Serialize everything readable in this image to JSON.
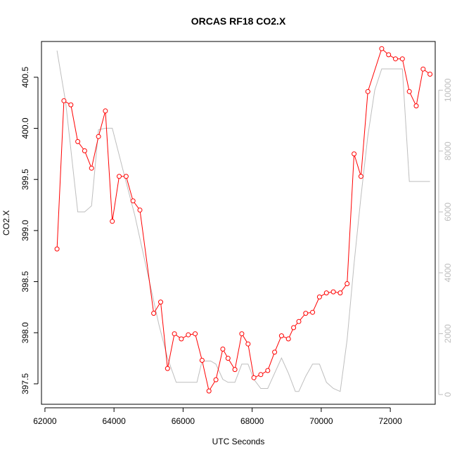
{
  "chart_data": {
    "type": "line",
    "title": "ORCAS RF18 CO2.X",
    "xlabel": "UTC Seconds",
    "ylabel": "CO2.X",
    "xlim": [
      61900,
      73300
    ],
    "ylim": [
      397.3,
      400.85
    ],
    "y2lim": [
      -320,
      11600
    ],
    "x_ticks": [
      62000,
      64000,
      66000,
      68000,
      70000,
      72000
    ],
    "y_ticks": [
      397.5,
      398.0,
      398.5,
      399.0,
      399.5,
      400.0,
      400.5
    ],
    "y2_ticks": [
      0,
      2000,
      4000,
      6000,
      8000,
      10000
    ],
    "grid": false,
    "legend": "none",
    "series": [
      {
        "role": "primary",
        "color": "#ff0000",
        "marker": "open-circle",
        "x": [
          62350,
          62550,
          62750,
          62950,
          63150,
          63350,
          63550,
          63750,
          63950,
          64150,
          64350,
          64550,
          64750,
          65150,
          65350,
          65550,
          65750,
          65950,
          66150,
          66350,
          66550,
          66750,
          66950,
          67150,
          67300,
          67500,
          67700,
          67880,
          68050,
          68250,
          68450,
          68650,
          68850,
          69050,
          69200,
          69350,
          69550,
          69750,
          69950,
          70150,
          70350,
          70550,
          70750,
          70950,
          71150,
          71350,
          71750,
          71950,
          72150,
          72350,
          72550,
          72750,
          72950,
          73150
        ],
        "y": [
          398.82,
          400.27,
          400.23,
          399.87,
          399.78,
          399.61,
          399.92,
          400.17,
          399.09,
          399.53,
          399.53,
          399.29,
          399.2,
          398.19,
          398.3,
          397.65,
          397.99,
          397.94,
          397.98,
          397.99,
          397.73,
          397.43,
          397.54,
          397.84,
          397.75,
          397.64,
          397.99,
          397.89,
          397.56,
          397.59,
          397.63,
          397.81,
          397.97,
          397.94,
          398.05,
          398.11,
          398.19,
          398.2,
          398.35,
          398.39,
          398.4,
          398.39,
          398.48,
          399.75,
          399.53,
          400.36,
          400.78,
          400.72,
          400.68,
          400.68,
          400.36,
          400.22,
          400.58,
          400.53
        ]
      },
      {
        "role": "secondary",
        "color": "#bebebe",
        "x": [
          62350,
          62600,
          62950,
          63150,
          63350,
          63550,
          63750,
          63950,
          64300,
          64600,
          64950,
          65300,
          65550,
          65800,
          66100,
          66400,
          66550,
          66800,
          66950,
          67150,
          67300,
          67500,
          67700,
          67880,
          68050,
          68250,
          68450,
          68650,
          68850,
          69050,
          69250,
          69350,
          69550,
          69750,
          69950,
          70150,
          70350,
          70550,
          70750,
          70950,
          71150,
          71350,
          71550,
          71750,
          71950,
          72150,
          72350,
          72550,
          72750,
          72950,
          73150
        ],
        "y": [
          11300,
          9600,
          6000,
          6000,
          6200,
          8700,
          8750,
          8750,
          7200,
          5900,
          4100,
          2300,
          1200,
          400,
          400,
          400,
          1100,
          1100,
          1000,
          500,
          400,
          400,
          1000,
          1000,
          500,
          200,
          200,
          700,
          1200,
          700,
          100,
          100,
          600,
          1000,
          1000,
          400,
          200,
          100,
          1800,
          4300,
          6500,
          8500,
          10000,
          10700,
          10700,
          10700,
          10700,
          7000,
          7000,
          7000,
          7000
        ]
      }
    ]
  }
}
